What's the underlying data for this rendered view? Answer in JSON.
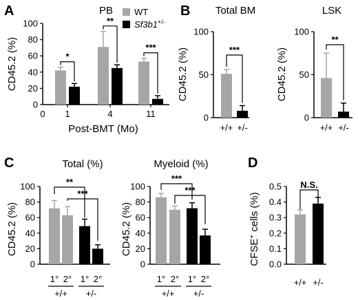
{
  "colors": {
    "wt": "#a6a6a6",
    "mut": "#000000"
  },
  "legend": [
    {
      "label": "WT",
      "color": "#a6a6a6"
    },
    {
      "label": "Sf3b1+/-",
      "color": "#000000"
    }
  ],
  "chart_data": [
    {
      "panel": "A",
      "type": "bar",
      "title": "PB",
      "xlabel": "Post-BMT (Mo)",
      "ylabel": "CD45.2 (%)",
      "ylim": [
        0,
        100
      ],
      "yticks": [
        0,
        20,
        40,
        60,
        80,
        100
      ],
      "categories": [
        "1",
        "4",
        "11"
      ],
      "x_zero_label": "0",
      "series": [
        {
          "name": "WT",
          "values": [
            42,
            71,
            53
          ],
          "errors": [
            4,
            19,
            4
          ]
        },
        {
          "name": "Sf3b1+/-",
          "values": [
            22,
            45,
            7
          ],
          "errors": [
            4,
            4,
            4
          ]
        }
      ],
      "significance": [
        "*",
        "**",
        "***"
      ]
    },
    {
      "panel": "B",
      "type": "bar",
      "title": "Total BM",
      "ylabel": "CD45.2 (%)",
      "ylim": [
        0,
        100
      ],
      "yticks": [
        0,
        50,
        100
      ],
      "categories": [
        "+/+",
        "+/-"
      ],
      "values": [
        51,
        8
      ],
      "errors": [
        5,
        6
      ],
      "significance": "***"
    },
    {
      "panel": "B",
      "type": "bar",
      "title": "LSK",
      "ylabel": "CD45.2 (%)",
      "ylim": [
        0,
        100
      ],
      "yticks": [
        0,
        50,
        100
      ],
      "categories": [
        "+/+",
        "+/-"
      ],
      "values": [
        46,
        7
      ],
      "errors": [
        29,
        10
      ],
      "significance": "**"
    },
    {
      "panel": "C",
      "type": "bar",
      "title": "Total (%)",
      "ylabel": "CD45.2 (%)",
      "ylim": [
        0,
        100
      ],
      "yticks": [
        0,
        20,
        40,
        60,
        80,
        100
      ],
      "categories": [
        "1°",
        "2°",
        "1°",
        "2°"
      ],
      "groups": [
        "+/+",
        "+/-"
      ],
      "values": [
        72,
        63,
        49,
        20
      ],
      "errors": [
        10,
        11,
        9,
        5
      ],
      "significance": [
        "**",
        "***"
      ]
    },
    {
      "panel": "C",
      "type": "bar",
      "title": "Myeloid (%)",
      "ylabel": "CD45.2 (%)",
      "ylim": [
        0,
        100
      ],
      "yticks": [
        0,
        20,
        40,
        60,
        80,
        100
      ],
      "categories": [
        "1°",
        "2°",
        "1°",
        "2°"
      ],
      "groups": [
        "+/+",
        "+/-"
      ],
      "values": [
        86,
        70,
        72,
        37
      ],
      "errors": [
        5,
        5,
        7,
        8
      ],
      "significance": [
        "***",
        "***"
      ]
    },
    {
      "panel": "D",
      "type": "bar",
      "ylabel": "CFSE+ cells (%)",
      "ylim": [
        0,
        0.5
      ],
      "yticks": [
        "0.0",
        "0.1",
        "0.2",
        "0.3",
        "0.4",
        "0.5"
      ],
      "categories": [
        "+/+",
        "+/-"
      ],
      "values": [
        0.32,
        0.39
      ],
      "errors": [
        0.03,
        0.04
      ],
      "significance": "N.S."
    }
  ]
}
